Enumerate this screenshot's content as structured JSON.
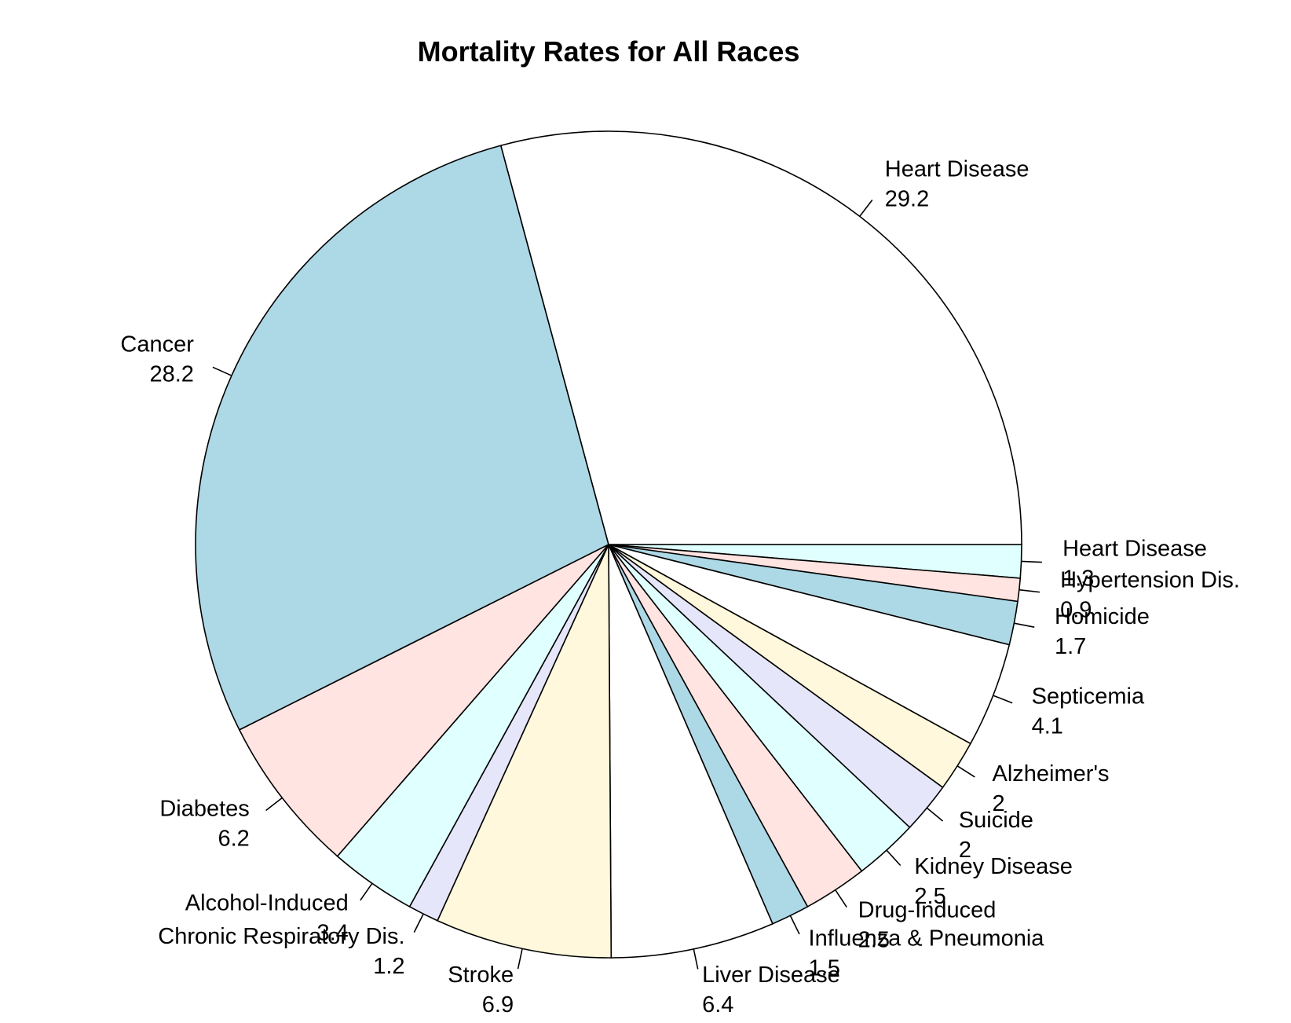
{
  "chart_data": {
    "type": "pie",
    "title": "Mortality Rates for All Races",
    "direction": "clockwise",
    "start_angle_deg": 0,
    "slices": [
      {
        "label": "Heart Disease",
        "value": 1.3,
        "value_label": "1.3",
        "color": "#E0FFFF"
      },
      {
        "label": "Hypertension Dis.",
        "value": 0.9,
        "value_label": "0.9",
        "color": "#FFE4E1"
      },
      {
        "label": "Homicide",
        "value": 1.7,
        "value_label": "1.7",
        "color": "#ADD8E6"
      },
      {
        "label": "Septicemia",
        "value": 4.1,
        "value_label": "4.1",
        "color": "#FFFFFF"
      },
      {
        "label": "Alzheimer's",
        "value": 2,
        "value_label": "2",
        "color": "#FFF8DC"
      },
      {
        "label": "Suicide",
        "value": 2,
        "value_label": "2",
        "color": "#E6E6FA"
      },
      {
        "label": "Kidney Disease",
        "value": 2.5,
        "value_label": "2.5",
        "color": "#E0FFFF"
      },
      {
        "label": "Drug-Induced",
        "value": 2.5,
        "value_label": "2.5",
        "color": "#FFE4E1"
      },
      {
        "label": "Influenza & Pneumonia",
        "value": 1.5,
        "value_label": "1.5",
        "color": "#ADD8E6"
      },
      {
        "label": "Liver Disease",
        "value": 6.4,
        "value_label": "6.4",
        "color": "#FFFFFF"
      },
      {
        "label": "Stroke",
        "value": 6.9,
        "value_label": "6.9",
        "color": "#FFF8DC"
      },
      {
        "label": "Chronic Respiratory Dis.",
        "value": 1.2,
        "value_label": "1.2",
        "color": "#E6E6FA"
      },
      {
        "label": "Alcohol-Induced",
        "value": 3.4,
        "value_label": "3.4",
        "color": "#E0FFFF"
      },
      {
        "label": "Diabetes",
        "value": 6.2,
        "value_label": "6.2",
        "color": "#FFE4E1"
      },
      {
        "label": "Cancer",
        "value": 28.2,
        "value_label": "28.2",
        "color": "#ADD8E6"
      },
      {
        "label": "Heart Disease",
        "value": 29.2,
        "value_label": "29.2",
        "color": "#FFFFFF"
      }
    ]
  }
}
